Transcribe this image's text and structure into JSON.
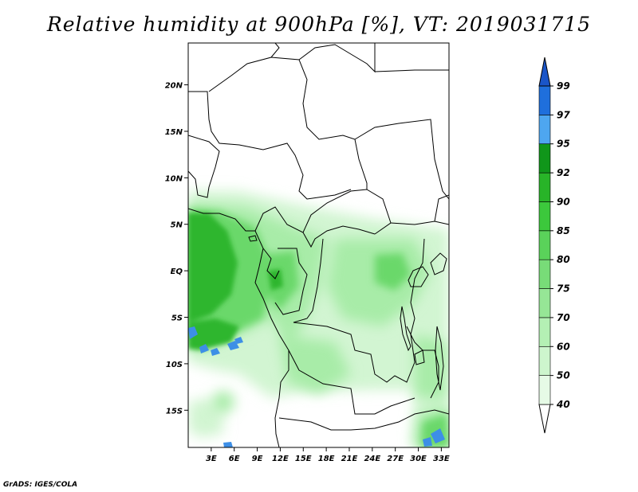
{
  "title": "Relative humidity at 900hPa [%], VT: 2019031715",
  "credit": "GrADS: IGES/COLA",
  "map": {
    "lon_range": [
      0,
      34
    ],
    "lat_range": [
      -19,
      24.5
    ],
    "lon_ticks": [
      {
        "value": 3,
        "label": "3E"
      },
      {
        "value": 6,
        "label": "6E"
      },
      {
        "value": 9,
        "label": "9E"
      },
      {
        "value": 12,
        "label": "12E"
      },
      {
        "value": 15,
        "label": "15E"
      },
      {
        "value": 18,
        "label": "18E"
      },
      {
        "value": 21,
        "label": "21E"
      },
      {
        "value": 24,
        "label": "24E"
      },
      {
        "value": 27,
        "label": "27E"
      },
      {
        "value": 30,
        "label": "30E"
      },
      {
        "value": 33,
        "label": "33E"
      }
    ],
    "lat_ticks": [
      {
        "value": 20,
        "label": "20N"
      },
      {
        "value": 15,
        "label": "15N"
      },
      {
        "value": 10,
        "label": "10N"
      },
      {
        "value": 5,
        "label": "5N"
      },
      {
        "value": 0,
        "label": "EQ"
      },
      {
        "value": -5,
        "label": "5S"
      },
      {
        "value": -10,
        "label": "10S"
      },
      {
        "value": -15,
        "label": "15S"
      }
    ]
  },
  "colorbar": {
    "levels": [
      "40",
      "50",
      "60",
      "70",
      "75",
      "80",
      "85",
      "90",
      "92",
      "95",
      "97",
      "99"
    ],
    "colors": [
      "#ffffff",
      "#e6fae6",
      "#cdf5cd",
      "#b4f0b4",
      "#96e696",
      "#78dc78",
      "#5ad25a",
      "#3cc83c",
      "#28b428",
      "#10961a",
      "#4ea6f0",
      "#1f6fdc",
      "#1a55c8"
    ]
  }
}
